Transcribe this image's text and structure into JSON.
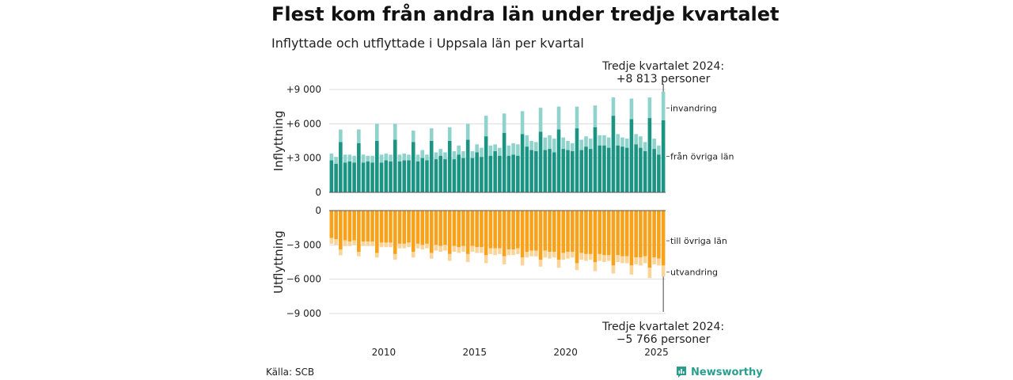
{
  "header": {
    "title": "Flest kom från andra län under tredje kvartalet",
    "subtitle": "Inflyttade och utflyttade i Uppsala län per kvartal"
  },
  "footer": {
    "source": "Källa: SCB",
    "brand": "Newsworthy"
  },
  "colors": {
    "in_ovriga": "#1b9484",
    "in_invandring": "#8fd3cc",
    "ut_ovriga": "#f7a21a",
    "ut_utvandring": "#fbd49a",
    "grid": "#dddddd",
    "brand": "#2a9d8f"
  },
  "chart_data": [
    {
      "type": "bar",
      "stacked": true,
      "panel": "top",
      "ylabel": "Inflyttning",
      "ylim": [
        0,
        9000
      ],
      "yticks": [
        {
          "value": 0,
          "label": "0"
        },
        {
          "value": 3000,
          "label": "+3 000"
        },
        {
          "value": 6000,
          "label": "+6 000"
        },
        {
          "value": 9000,
          "label": "+9 000"
        }
      ],
      "x_start": 2007.0,
      "x_step": 0.25,
      "xticks": [
        {
          "value": 2010,
          "label": "2010"
        },
        {
          "value": 2015,
          "label": "2015"
        },
        {
          "value": 2020,
          "label": "2020"
        },
        {
          "value": 2025,
          "label": "2025"
        }
      ],
      "series": [
        {
          "name": "från övriga län",
          "color": "#1b9484",
          "values": [
            2800,
            2500,
            4400,
            2600,
            2700,
            2600,
            4300,
            2600,
            2700,
            2600,
            4500,
            2600,
            2800,
            2700,
            4600,
            2700,
            2800,
            2800,
            4400,
            2700,
            3000,
            2800,
            4500,
            2900,
            3200,
            2900,
            4500,
            2900,
            3300,
            3000,
            4600,
            3000,
            3500,
            3100,
            4900,
            3200,
            3600,
            3200,
            5200,
            3200,
            3300,
            3200,
            5100,
            4000,
            3700,
            3600,
            5300,
            3700,
            3800,
            3500,
            5500,
            3800,
            3700,
            3600,
            5600,
            3700,
            4000,
            3800,
            5700,
            4100,
            4100,
            3900,
            6700,
            4100,
            4000,
            3900,
            6400,
            4200,
            3900,
            3600,
            6500,
            3800,
            3300,
            6300
          ],
          "totals": [
            3400,
            3100,
            5500,
            3300,
            3300,
            3200,
            5500,
            3300,
            3200,
            3200,
            6000,
            3300,
            3400,
            3300,
            6000,
            3300,
            3400,
            3300,
            5400,
            3300,
            3700,
            3300,
            5600,
            3500,
            3800,
            3500,
            5700,
            3600,
            4100,
            3600,
            6000,
            3600,
            4200,
            3900,
            6700,
            4100,
            4200,
            3900,
            6900,
            4100,
            4300,
            4200,
            7100,
            5000,
            4500,
            4400,
            7400,
            4800,
            5000,
            4700,
            7500,
            4800,
            4500,
            4300,
            7500,
            4600,
            4900,
            4700,
            7600,
            5000,
            5000,
            4800,
            8300,
            5100,
            4800,
            4700,
            8200,
            5100,
            4900,
            4400,
            8300,
            4700,
            4100,
            8813
          ]
        },
        {
          "name": "invandring",
          "color": "#8fd3cc"
        }
      ],
      "annotation": {
        "text_line1": "Tredje kvartalet 2024:",
        "text_line2": "+8 813 personer"
      }
    },
    {
      "type": "bar",
      "stacked": true,
      "panel": "bottom",
      "ylabel": "Utflyttning",
      "ylim": [
        -9000,
        0
      ],
      "yticks": [
        {
          "value": 0,
          "label": "0"
        },
        {
          "value": -3000,
          "label": "−3 000"
        },
        {
          "value": -6000,
          "label": "−6 000"
        },
        {
          "value": -9000,
          "label": "−9 000"
        }
      ],
      "series": [
        {
          "name": "till övriga län",
          "color": "#f7a21a",
          "values": [
            -2400,
            -2500,
            -3400,
            -2600,
            -2700,
            -2600,
            -3600,
            -2700,
            -2700,
            -2700,
            -3700,
            -2800,
            -2800,
            -2800,
            -3800,
            -2900,
            -2900,
            -2800,
            -3600,
            -2900,
            -3000,
            -2900,
            -3700,
            -3000,
            -3100,
            -3000,
            -3800,
            -3100,
            -3200,
            -3100,
            -3800,
            -3100,
            -3200,
            -3200,
            -3900,
            -3300,
            -3300,
            -3300,
            -4000,
            -3400,
            -3400,
            -3300,
            -4100,
            -3600,
            -3500,
            -3500,
            -4300,
            -3500,
            -3600,
            -3600,
            -4300,
            -3700,
            -3600,
            -3600,
            -4600,
            -3700,
            -3800,
            -3800,
            -4500,
            -3800,
            -3900,
            -3900,
            -4800,
            -3900,
            -4000,
            -4000,
            -4800,
            -4100,
            -4100,
            -4000,
            -5000,
            -4100,
            -4200,
            -4800
          ]
        },
        {
          "name": "utvandring",
          "color": "#fbd49a",
          "totals": [
            -2900,
            -3000,
            -3900,
            -3100,
            -3100,
            -3000,
            -4000,
            -3100,
            -3100,
            -3100,
            -4100,
            -3200,
            -3200,
            -3200,
            -4300,
            -3300,
            -3300,
            -3200,
            -4100,
            -3300,
            -3400,
            -3300,
            -4200,
            -3500,
            -3600,
            -3500,
            -4400,
            -3600,
            -3700,
            -3600,
            -4500,
            -3600,
            -3700,
            -3700,
            -4600,
            -3800,
            -3900,
            -3800,
            -4700,
            -3900,
            -3900,
            -3800,
            -4800,
            -4100,
            -4000,
            -4000,
            -4900,
            -4100,
            -4200,
            -4100,
            -5000,
            -4300,
            -4200,
            -4100,
            -5200,
            -4300,
            -4400,
            -4300,
            -5300,
            -4400,
            -4500,
            -4400,
            -5500,
            -4500,
            -4600,
            -4600,
            -5600,
            -4700,
            -4800,
            -4600,
            -5900,
            -4700,
            -4800,
            -5766
          ]
        }
      ],
      "annotation": {
        "text_line1": "Tredje kvartalet 2024:",
        "text_line2": "−5 766 personer"
      }
    }
  ]
}
